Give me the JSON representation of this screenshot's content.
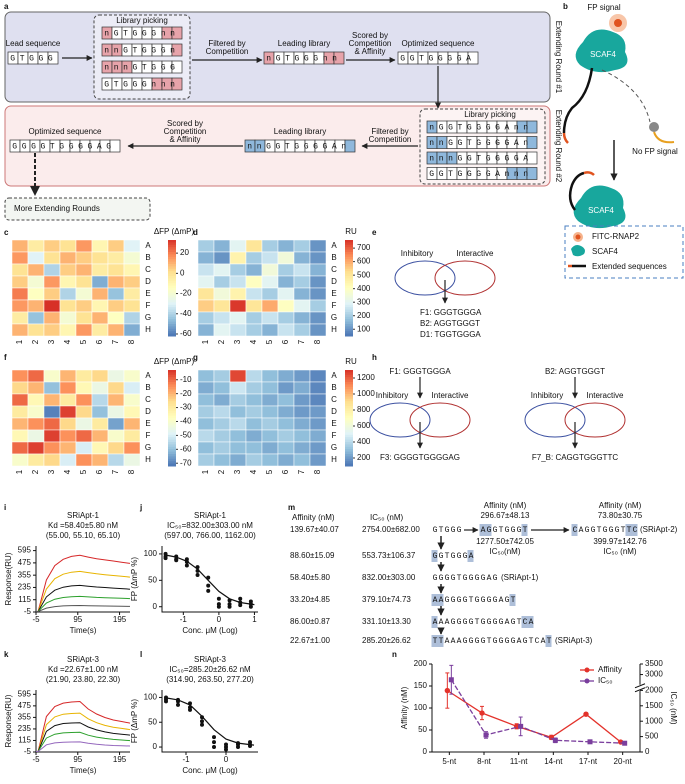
{
  "panel_labels": [
    "a",
    "b",
    "c",
    "d",
    "e",
    "f",
    "g",
    "h",
    "i",
    "j",
    "k",
    "l",
    "m",
    "n"
  ],
  "a": {
    "round1": "Extending Round #1",
    "round2": "Extending Round #2",
    "lead_label": "Lead sequence",
    "lead": "GTGGG",
    "picking_label": "Library picking",
    "library1": [
      "nGTGGGnn",
      "nnGTGGGn",
      "nnnGTGGG",
      "GTGGGnnn"
    ],
    "filter_label": [
      "Filtered by",
      "Competition"
    ],
    "leading_label": "Leading library",
    "leading1": "nGTGGGnn",
    "score_label": [
      "Scored by",
      "Competition",
      "& Affinity"
    ],
    "optimized_label": "Optimized sequence",
    "optimized1": "GGTGGGGA",
    "library2": [
      "nGGTGGGGAnn",
      "nnGGTGGGGAn",
      "nnnGGTGGGGA",
      "GGTGGGGAnnn"
    ],
    "leading2": "nnGGTGGGGAn",
    "optimized2": "GGGGTGGGGAG",
    "more": "More Extending Rounds"
  },
  "b": {
    "fp_signal": "FP signal",
    "scaf4": "SCAF4",
    "no_fp_signal": "No FP signal",
    "legend": [
      "FITC-RNAP2",
      "SCAF4",
      "Extended sequences"
    ]
  },
  "e": {
    "inhibitory": "Inhibitory",
    "interactive": "Interactive",
    "hits": [
      "F1: GGGTGGGA",
      "B2: AGGTGGGT",
      "D1: TGGTGGGA"
    ]
  },
  "h": {
    "inputs": [
      "F1: GGGTGGGA",
      "B2: AGGTGGGT"
    ],
    "inhibitory": "Inhibitory",
    "interactive": "Interactive",
    "outputs": [
      "F3: GGGGTGGGGAG",
      "F7_B: CAGGTGGGTTC"
    ]
  },
  "m": {
    "headers": [
      "Affinity (nM)",
      "IC₅₀ (nM)"
    ],
    "rows": [
      {
        "affinity": "139.67±40.07",
        "ic50": "2754.00±682.00",
        "sequence": "GTGGG"
      },
      {
        "affinity": "88.60±15.09",
        "ic50": "553.73±106.37",
        "sequence": "GGTGGGA"
      },
      {
        "affinity": "58.40±5.80",
        "ic50": "832.00±303.00",
        "sequence": "GGGGTGGGGAG",
        "name": "(SRiApt-1)"
      },
      {
        "affinity": "33.20±4.85",
        "ic50": "379.10±74.73",
        "sequence": "AAGGGGTGGGGAGT"
      },
      {
        "affinity": "86.00±0.87",
        "ic50": "331.10±13.30",
        "sequence": "AAAGGGGTGGGGAGTCA"
      },
      {
        "affinity": "22.67±1.00",
        "ic50": "285.20±26.62",
        "sequence": "TTAAAGGGGTGGGGAGTCAT",
        "name": "(SRiApt-3)"
      }
    ],
    "branches": [
      {
        "affinity_label": "Affinity (nM)",
        "affinity": "296.67±48.13",
        "sequence": "AGGTGGGT",
        "ic50": "1277.50±742.05",
        "ic50_label": "IC₅₀(nM)"
      },
      {
        "affinity_label": "Affinity (nM)",
        "affinity": "73.80±30.75",
        "sequence": "CAGGTGGGTTC",
        "name": "(SRiApt-2)",
        "ic50": "399.97±142.76",
        "ic50_label": "IC₅₀ (nM)"
      }
    ]
  },
  "chart_data": [
    {
      "type": "heatmap",
      "colorbar_label": "ΔFP (ΔmP)",
      "clim": [
        -62,
        33
      ],
      "cticks": [
        20,
        0,
        -20,
        -40,
        -60
      ],
      "colormap": [
        "#4a74b4",
        "#91bfdb",
        "#e0f3f8",
        "#ffffbf",
        "#fee090",
        "#fc8d59",
        "#d73027"
      ],
      "rows": [
        "A",
        "B",
        "C",
        "D",
        "E",
        "F",
        "G",
        "H"
      ],
      "cols": [
        1,
        2,
        3,
        4,
        5,
        6,
        7,
        8
      ],
      "values": [
        [
          10,
          -5,
          5,
          0,
          15,
          -10,
          5,
          -30
        ],
        [
          15,
          -30,
          0,
          10,
          5,
          0,
          -5,
          -20
        ],
        [
          0,
          10,
          -40,
          5,
          10,
          -5,
          0,
          -10
        ],
        [
          5,
          -20,
          15,
          -10,
          0,
          -50,
          10,
          5
        ],
        [
          20,
          -15,
          5,
          -40,
          -20,
          10,
          -45,
          -5
        ],
        [
          15,
          10,
          33,
          0,
          5,
          -10,
          5,
          0
        ],
        [
          -5,
          -45,
          10,
          -20,
          0,
          10,
          -15,
          -40
        ],
        [
          10,
          0,
          5,
          -10,
          15,
          -5,
          10,
          -50
        ]
      ]
    },
    {
      "type": "heatmap",
      "colorbar_label": "RU",
      "clim": [
        50,
        760
      ],
      "cticks": [
        100,
        200,
        300,
        400,
        500,
        600,
        700
      ],
      "colormap": [
        "#4a74b4",
        "#91bfdb",
        "#e0f3f8",
        "#ffffbf",
        "#fee090",
        "#fc8d59",
        "#d73027"
      ],
      "rows": [
        "A",
        "B",
        "C",
        "D",
        "E",
        "F",
        "G",
        "H"
      ],
      "cols": [
        1,
        2,
        3,
        4,
        5,
        6,
        7,
        8
      ],
      "values": [
        [
          200,
          150,
          300,
          500,
          200,
          150,
          200,
          100
        ],
        [
          150,
          100,
          450,
          200,
          250,
          350,
          150,
          100
        ],
        [
          250,
          300,
          200,
          150,
          350,
          200,
          250,
          150
        ],
        [
          300,
          200,
          250,
          400,
          300,
          150,
          200,
          100
        ],
        [
          500,
          350,
          450,
          250,
          200,
          300,
          150,
          100
        ],
        [
          550,
          500,
          750,
          500,
          600,
          400,
          300,
          200
        ],
        [
          200,
          250,
          300,
          200,
          250,
          200,
          150,
          100
        ],
        [
          150,
          300,
          250,
          200,
          150,
          250,
          200,
          100
        ]
      ]
    },
    {
      "type": "heatmap",
      "colorbar_label": "ΔFP (ΔmP)",
      "clim": [
        -72,
        -3
      ],
      "cticks": [
        -10,
        -20,
        -30,
        -40,
        -50,
        -60,
        -70
      ],
      "colormap": [
        "#4a74b4",
        "#91bfdb",
        "#e0f3f8",
        "#ffffbf",
        "#fee090",
        "#fc8d59",
        "#d73027"
      ],
      "rows": [
        "A",
        "B",
        "C",
        "D",
        "E",
        "F",
        "G",
        "H"
      ],
      "cols": [
        1,
        2,
        3,
        4,
        5,
        6,
        7,
        8
      ],
      "values": [
        [
          -15,
          -10,
          -40,
          -20,
          -30,
          -25,
          -45,
          -40
        ],
        [
          -25,
          -20,
          -60,
          -15,
          -35,
          -45,
          -25,
          -50
        ],
        [
          -10,
          -35,
          -20,
          -30,
          -15,
          -55,
          -20,
          -40
        ],
        [
          -30,
          -40,
          -70,
          -5,
          -25,
          -60,
          -45,
          -35
        ],
        [
          -20,
          -15,
          -10,
          -25,
          -45,
          -30,
          -65,
          -20
        ],
        [
          -35,
          -45,
          -5,
          -15,
          -10,
          -20,
          -40,
          -30
        ],
        [
          -10,
          -5,
          -15,
          -20,
          -50,
          -35,
          -25,
          -15
        ],
        [
          -40,
          -30,
          -25,
          -50,
          -15,
          -20,
          -55,
          -45
        ]
      ]
    },
    {
      "type": "heatmap",
      "colorbar_label": "RU",
      "clim": [
        100,
        1300
      ],
      "cticks": [
        200,
        400,
        600,
        800,
        1000,
        1200
      ],
      "colormap": [
        "#4a74b4",
        "#91bfdb",
        "#e0f3f8",
        "#ffffbf",
        "#fee090",
        "#fc8d59",
        "#d73027"
      ],
      "rows": [
        "A",
        "B",
        "C",
        "D",
        "E",
        "F",
        "G",
        "H"
      ],
      "cols": [
        1,
        2,
        3,
        4,
        5,
        6,
        7,
        8
      ],
      "values": [
        [
          300,
          350,
          1250,
          400,
          300,
          250,
          200,
          150
        ],
        [
          250,
          300,
          450,
          350,
          300,
          200,
          250,
          150
        ],
        [
          300,
          250,
          350,
          300,
          250,
          300,
          200,
          150
        ],
        [
          350,
          400,
          300,
          350,
          300,
          250,
          200,
          200
        ],
        [
          300,
          350,
          400,
          300,
          350,
          300,
          250,
          200
        ],
        [
          400,
          350,
          300,
          250,
          300,
          350,
          300,
          250
        ],
        [
          300,
          350,
          300,
          300,
          250,
          300,
          250,
          200
        ],
        [
          350,
          300,
          250,
          350,
          300,
          250,
          300,
          200
        ]
      ]
    },
    {
      "type": "line",
      "title": "SRiApt-1",
      "subtitle": [
        "Kd =58.40±5.80 nM",
        "(55.00, 55.10, 65.10)"
      ],
      "xlabel": "Time(s)",
      "ylabel": "Response(RU)",
      "x": [
        -5,
        0,
        20,
        40,
        60,
        80,
        100,
        120,
        140,
        160,
        180,
        200,
        220
      ],
      "series": [
        {
          "color": "#d62728",
          "values": [
            0,
            0,
            308,
            448,
            510,
            538,
            549,
            532,
            515,
            504,
            493,
            482,
            470
          ]
        },
        {
          "color": "#e8b400",
          "values": [
            0,
            0,
            220,
            320,
            364,
            384,
            392,
            380,
            368,
            360,
            352,
            344,
            336
          ]
        },
        {
          "color": "#111111",
          "values": [
            0,
            0,
            143,
            208,
            237,
            250,
            255,
            247,
            239,
            234,
            229,
            224,
            218
          ]
        },
        {
          "color": "#2ca02c",
          "values": [
            0,
            0,
            83,
            120,
            137,
            144,
            147,
            143,
            138,
            135,
            132,
            129,
            126
          ]
        },
        {
          "color": "#555555",
          "values": [
            0,
            0,
            33,
            48,
            55,
            58,
            59,
            57,
            55,
            54,
            53,
            52,
            50
          ]
        }
      ],
      "xlim": [
        -5,
        220
      ],
      "xticks": [
        -5,
        95,
        195
      ],
      "ylim": [
        -5,
        640
      ],
      "yticks": [
        -5,
        115,
        235,
        355,
        475,
        595
      ]
    },
    {
      "type": "scatter",
      "title": "SRiApt-1",
      "subtitle": [
        "IC₅₀=832.00±303.00 nM",
        "(597.00, 766.00, 1162.00)"
      ],
      "xlabel": "Conc. μM (Log)",
      "ylabel": "FP (ΔmP %)",
      "color": "#111111",
      "x": [
        -1.5,
        -1.5,
        -1.5,
        -1.2,
        -1.2,
        -1.2,
        -0.9,
        -0.9,
        -0.9,
        -0.6,
        -0.6,
        -0.6,
        -0.3,
        -0.3,
        -0.3,
        0,
        0,
        0,
        0.3,
        0.3,
        0.3,
        0.6,
        0.6,
        0.6,
        0.9,
        0.9,
        0.9
      ],
      "values": [
        100,
        95,
        92,
        95,
        90,
        88,
        90,
        85,
        78,
        75,
        68,
        60,
        55,
        40,
        30,
        15,
        5,
        0,
        12,
        5,
        0,
        15,
        8,
        3,
        10,
        5,
        0
      ],
      "fit": {
        "x": [
          -1.5,
          -1.2,
          -0.9,
          -0.6,
          -0.3,
          0,
          0.3,
          0.6,
          0.9,
          1.0
        ],
        "values": [
          98,
          94,
          86,
          71,
          50,
          29,
          15,
          8,
          5,
          4
        ]
      },
      "xlim": [
        -1.6,
        1.1
      ],
      "xticks": [
        -1,
        0,
        1
      ],
      "ylim": [
        -10,
        115
      ],
      "yticks": [
        0,
        50,
        100
      ]
    },
    {
      "type": "line",
      "title": "SRiApt-3",
      "subtitle": [
        "Kd =22.67±1.00 nM",
        "(21.90, 23.80, 22.30)"
      ],
      "xlabel": "Time(s)",
      "ylabel": "Response(RU)",
      "x": [
        -5,
        0,
        20,
        40,
        60,
        80,
        100,
        120,
        140,
        160,
        180,
        200,
        220
      ],
      "series": [
        {
          "color": "#d62728",
          "values": [
            0,
            0,
            364,
            468,
            504,
            515,
            520,
            442,
            390,
            354,
            328,
            312,
            296
          ]
        },
        {
          "color": "#e8b400",
          "values": [
            0,
            0,
            280,
            360,
            388,
            396,
            400,
            340,
            300,
            272,
            252,
            240,
            228
          ]
        },
        {
          "color": "#111111",
          "values": [
            0,
            0,
            210,
            270,
            291,
            297,
            300,
            255,
            225,
            204,
            189,
            180,
            171
          ]
        },
        {
          "color": "#2ca02c",
          "values": [
            0,
            0,
            140,
            180,
            194,
            198,
            200,
            170,
            150,
            136,
            126,
            120,
            114
          ]
        },
        {
          "color": "#9467bd",
          "values": [
            0,
            0,
            70,
            90,
            97,
            99,
            100,
            85,
            75,
            68,
            63,
            60,
            57
          ]
        }
      ],
      "xlim": [
        -5,
        220
      ],
      "xticks": [
        -5,
        95,
        195
      ],
      "ylim": [
        -5,
        640
      ],
      "yticks": [
        -5,
        115,
        235,
        355,
        475,
        595
      ]
    },
    {
      "type": "scatter",
      "title": "SRiApt-3",
      "subtitle": [
        "IC₅₀=285.20±26.62 nM",
        "(314.90, 263.50, 277.20)"
      ],
      "xlabel": "Conc. μM (Log)",
      "ylabel": "FP (ΔmP %)",
      "color": "#111111",
      "x": [
        -1.5,
        -1.5,
        -1.5,
        -1.2,
        -1.2,
        -1.2,
        -0.9,
        -0.9,
        -0.9,
        -0.6,
        -0.6,
        -0.6,
        -0.3,
        -0.3,
        -0.3,
        0,
        0,
        0,
        0.3,
        0.3,
        0.3,
        0.6,
        0.6,
        0.6
      ],
      "values": [
        100,
        96,
        92,
        95,
        92,
        85,
        88,
        80,
        75,
        60,
        52,
        45,
        20,
        10,
        0,
        5,
        0,
        -5,
        8,
        5,
        0,
        10,
        5,
        2
      ],
      "fit": {
        "x": [
          -1.5,
          -1.2,
          -0.9,
          -0.6,
          -0.3,
          0,
          0.3,
          0.6,
          0.7
        ],
        "values": [
          99,
          95,
          85,
          62,
          35,
          16,
          8,
          5,
          4
        ]
      },
      "xlim": [
        -1.6,
        0.8
      ],
      "xticks": [
        -1,
        0
      ],
      "ylim": [
        -10,
        115
      ],
      "yticks": [
        0,
        50,
        100
      ]
    },
    {
      "type": "dual-line",
      "categories": [
        "5-nt",
        "8-nt",
        "11-nt",
        "14-nt",
        "17-nt",
        "20-nt"
      ],
      "ylabel": "Affinity (nM)",
      "y2label": "IC₅₀ (nM)",
      "series": [
        {
          "name": "Affinity",
          "color": "#e3322b",
          "values": [
            139.67,
            88.6,
            58.4,
            33.2,
            86.0,
            22.67
          ],
          "errors": [
            40.07,
            15.09,
            5.8,
            4.85,
            0.87,
            1.0
          ]
        },
        {
          "name": "IC₅₀",
          "color": "#7a3e9d",
          "axis": "y2",
          "values": [
            2754.0,
            553.73,
            832.0,
            379.1,
            331.1,
            285.2
          ],
          "errors": [
            682.0,
            106.37,
            303.0,
            74.73,
            13.3,
            26.62
          ]
        }
      ],
      "ylim": [
        0,
        200
      ],
      "yticks": [
        0,
        50,
        100,
        150,
        200
      ],
      "y2lim": [
        0,
        3500
      ],
      "y2ticks": [
        0,
        500,
        1000,
        1500,
        2000,
        3000,
        3500
      ],
      "y2_break": [
        2000,
        2500
      ],
      "legend": "upper right"
    }
  ]
}
